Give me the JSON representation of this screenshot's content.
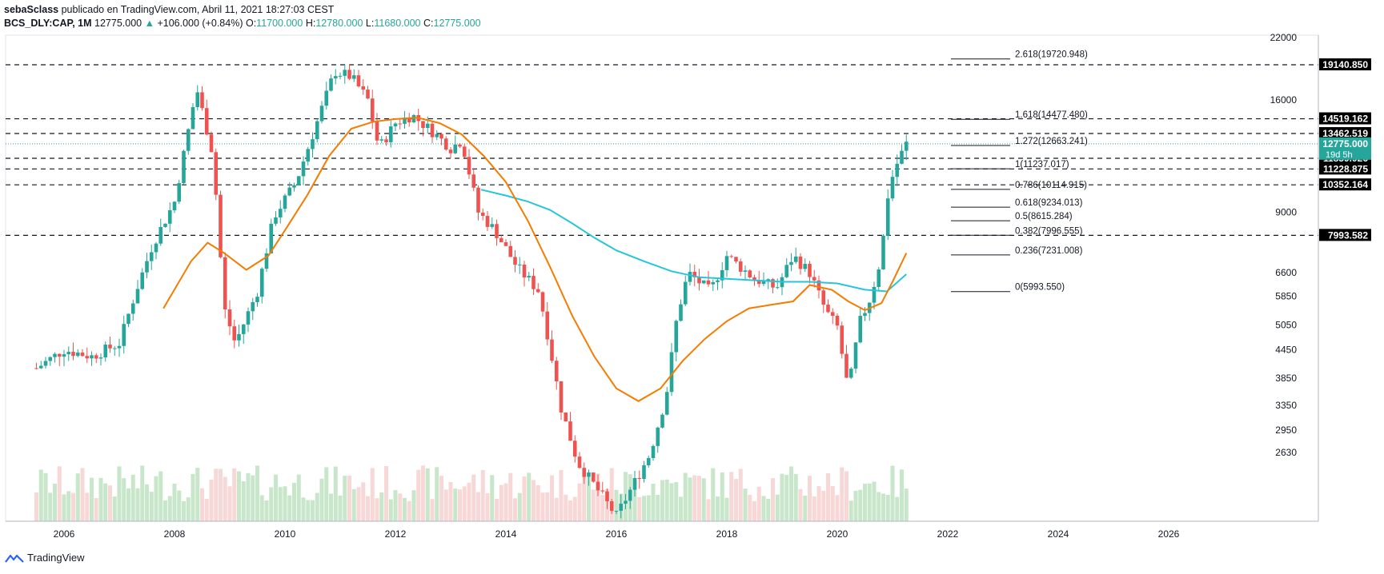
{
  "header": {
    "user": "sebaSclass",
    "published": "publicado en TradingView.com, Abril 11, 2021 18:27:03 CEST",
    "symbol": "BCS_DLY:CAP, 1M",
    "last": "12775.000",
    "change": "+106.000 (+0.84%)",
    "o_label": "O:",
    "o": "11700.000",
    "h_label": "H:",
    "h": "12780.000",
    "l_label": "L:",
    "l": "11680.000",
    "c_label": "C:",
    "c": "12775.000"
  },
  "footer": {
    "brand": "TradingView"
  },
  "colors": {
    "up": "#26a69a",
    "down": "#ef5350",
    "vol_up": "#c8e6c9",
    "vol_down": "#f8d7d7",
    "ma_fast": "#f57c00",
    "ma_slow": "#26c6da",
    "last_price_bg": "#26a69a"
  },
  "chart_data": {
    "type": "candlestick",
    "x_axis": {
      "ticks": [
        "2006",
        "2008",
        "2010",
        "2012",
        "2014",
        "2016",
        "2018",
        "2020",
        "2022",
        "2024",
        "2026"
      ]
    },
    "y_axis": {
      "scale": "log",
      "ticks": [
        "22000",
        "16000",
        "9000",
        "6600",
        "5850",
        "5050",
        "4450",
        "3850",
        "3350",
        "2950",
        "2630"
      ]
    },
    "closes_monthly_approx": [
      {
        "year": 2005.5,
        "close": 4050
      },
      {
        "year": 2006.0,
        "close": 4450
      },
      {
        "year": 2006.5,
        "close": 4300
      },
      {
        "year": 2007.0,
        "close": 4600
      },
      {
        "year": 2007.3,
        "close": 6000
      },
      {
        "year": 2007.6,
        "close": 7600
      },
      {
        "year": 2008.0,
        "close": 9500
      },
      {
        "year": 2008.4,
        "close": 17000
      },
      {
        "year": 2008.7,
        "close": 12000
      },
      {
        "year": 2008.9,
        "close": 5500
      },
      {
        "year": 2009.1,
        "close": 4600
      },
      {
        "year": 2009.5,
        "close": 6000
      },
      {
        "year": 2009.8,
        "close": 8800
      },
      {
        "year": 2010.2,
        "close": 10500
      },
      {
        "year": 2010.6,
        "close": 14500
      },
      {
        "year": 2010.9,
        "close": 18500
      },
      {
        "year": 2011.2,
        "close": 18000
      },
      {
        "year": 2011.5,
        "close": 16000
      },
      {
        "year": 2011.7,
        "close": 12500
      },
      {
        "year": 2012.0,
        "close": 14200
      },
      {
        "year": 2012.3,
        "close": 14800
      },
      {
        "year": 2012.7,
        "close": 13500
      },
      {
        "year": 2013.0,
        "close": 12500
      },
      {
        "year": 2013.2,
        "close": 13000
      },
      {
        "year": 2013.5,
        "close": 9000
      },
      {
        "year": 2013.8,
        "close": 8200
      },
      {
        "year": 2014.2,
        "close": 6800
      },
      {
        "year": 2014.6,
        "close": 6000
      },
      {
        "year": 2014.8,
        "close": 4500
      },
      {
        "year": 2015.0,
        "close": 3300
      },
      {
        "year": 2015.3,
        "close": 2500
      },
      {
        "year": 2016.0,
        "close": 1900
      },
      {
        "year": 2016.6,
        "close": 2600
      },
      {
        "year": 2016.9,
        "close": 3500
      },
      {
        "year": 2017.1,
        "close": 5300
      },
      {
        "year": 2017.3,
        "close": 6600
      },
      {
        "year": 2017.7,
        "close": 6000
      },
      {
        "year": 2018.0,
        "close": 7200
      },
      {
        "year": 2018.5,
        "close": 6400
      },
      {
        "year": 2018.9,
        "close": 6100
      },
      {
        "year": 2019.2,
        "close": 7200
      },
      {
        "year": 2019.5,
        "close": 6600
      },
      {
        "year": 2019.8,
        "close": 5400
      },
      {
        "year": 2020.0,
        "close": 5000
      },
      {
        "year": 2020.2,
        "close": 3600
      },
      {
        "year": 2020.4,
        "close": 5100
      },
      {
        "year": 2020.6,
        "close": 5800
      },
      {
        "year": 2020.8,
        "close": 7200
      },
      {
        "year": 2020.9,
        "close": 9600
      },
      {
        "year": 2021.0,
        "close": 10800
      },
      {
        "year": 2021.1,
        "close": 11700
      },
      {
        "year": 2021.25,
        "close": 12775
      }
    ],
    "ma_fast": [
      {
        "year": 2007.8,
        "value": 5500
      },
      {
        "year": 2008.3,
        "value": 7000
      },
      {
        "year": 2008.6,
        "value": 7700
      },
      {
        "year": 2008.9,
        "value": 7300
      },
      {
        "year": 2009.3,
        "value": 6700
      },
      {
        "year": 2009.7,
        "value": 7200
      },
      {
        "year": 2010.0,
        "value": 8200
      },
      {
        "year": 2010.4,
        "value": 9800
      },
      {
        "year": 2010.8,
        "value": 12000
      },
      {
        "year": 2011.2,
        "value": 13800
      },
      {
        "year": 2011.6,
        "value": 14300
      },
      {
        "year": 2012.0,
        "value": 14500
      },
      {
        "year": 2012.4,
        "value": 14600
      },
      {
        "year": 2012.8,
        "value": 14200
      },
      {
        "year": 2013.2,
        "value": 13400
      },
      {
        "year": 2013.6,
        "value": 12000
      },
      {
        "year": 2014.0,
        "value": 10500
      },
      {
        "year": 2014.4,
        "value": 8600
      },
      {
        "year": 2014.8,
        "value": 6800
      },
      {
        "year": 2015.2,
        "value": 5300
      },
      {
        "year": 2015.6,
        "value": 4300
      },
      {
        "year": 2016.0,
        "value": 3650
      },
      {
        "year": 2016.4,
        "value": 3420
      },
      {
        "year": 2016.8,
        "value": 3650
      },
      {
        "year": 2017.2,
        "value": 4200
      },
      {
        "year": 2017.6,
        "value": 4700
      },
      {
        "year": 2018.0,
        "value": 5150
      },
      {
        "year": 2018.4,
        "value": 5500
      },
      {
        "year": 2018.8,
        "value": 5600
      },
      {
        "year": 2019.2,
        "value": 5700
      },
      {
        "year": 2019.5,
        "value": 6200
      },
      {
        "year": 2019.9,
        "value": 6050
      },
      {
        "year": 2020.2,
        "value": 5700
      },
      {
        "year": 2020.5,
        "value": 5450
      },
      {
        "year": 2020.8,
        "value": 5650
      },
      {
        "year": 2021.0,
        "value": 6300
      },
      {
        "year": 2021.25,
        "value": 7300
      }
    ],
    "ma_slow": [
      {
        "year": 2013.55,
        "value": 10100
      },
      {
        "year": 2014.0,
        "value": 9800
      },
      {
        "year": 2014.4,
        "value": 9500
      },
      {
        "year": 2014.8,
        "value": 9100
      },
      {
        "year": 2015.2,
        "value": 8500
      },
      {
        "year": 2015.6,
        "value": 7900
      },
      {
        "year": 2016.0,
        "value": 7400
      },
      {
        "year": 2016.5,
        "value": 7000
      },
      {
        "year": 2017.0,
        "value": 6650
      },
      {
        "year": 2017.5,
        "value": 6450
      },
      {
        "year": 2018.0,
        "value": 6400
      },
      {
        "year": 2018.5,
        "value": 6350
      },
      {
        "year": 2019.0,
        "value": 6300
      },
      {
        "year": 2019.5,
        "value": 6300
      },
      {
        "year": 2020.0,
        "value": 6250
      },
      {
        "year": 2020.5,
        "value": 6050
      },
      {
        "year": 2020.9,
        "value": 6000
      },
      {
        "year": 2021.25,
        "value": 6550
      }
    ],
    "horizontal_levels": [
      {
        "value": 19140.85,
        "label": "19140.850"
      },
      {
        "value": 14519.162,
        "label": "14519.162"
      },
      {
        "value": 13462.519,
        "label": "13462.519"
      },
      {
        "value": 11859.926,
        "label": "11859.926"
      },
      {
        "value": 11228.875,
        "label": "11228.875"
      },
      {
        "value": 10352.164,
        "label": "10352.164"
      },
      {
        "value": 7993.582,
        "label": "7993.582"
      }
    ],
    "last_price": {
      "value": 12775,
      "label": "12775.000",
      "countdown": "19d 5h"
    },
    "fibonacci": [
      {
        "value": 19720.948,
        "label": "2.618(19720.948)"
      },
      {
        "value": 14477.48,
        "label": "1.618(14477.480)"
      },
      {
        "value": 12663.241,
        "label": "1.272(12663.241)"
      },
      {
        "value": 11237.017,
        "label": "1(11237.017)"
      },
      {
        "value": 10114.915,
        "label": "0.786(10114.915)"
      },
      {
        "value": 9234.013,
        "label": "0.618(9234.013)"
      },
      {
        "value": 8615.284,
        "label": "0.5(8615.284)"
      },
      {
        "value": 7996.555,
        "label": "0.382(7996.555)"
      },
      {
        "value": 7231.008,
        "label": "0.236(7231.008)"
      },
      {
        "value": 5993.55,
        "label": "0(5993.550)"
      }
    ]
  }
}
